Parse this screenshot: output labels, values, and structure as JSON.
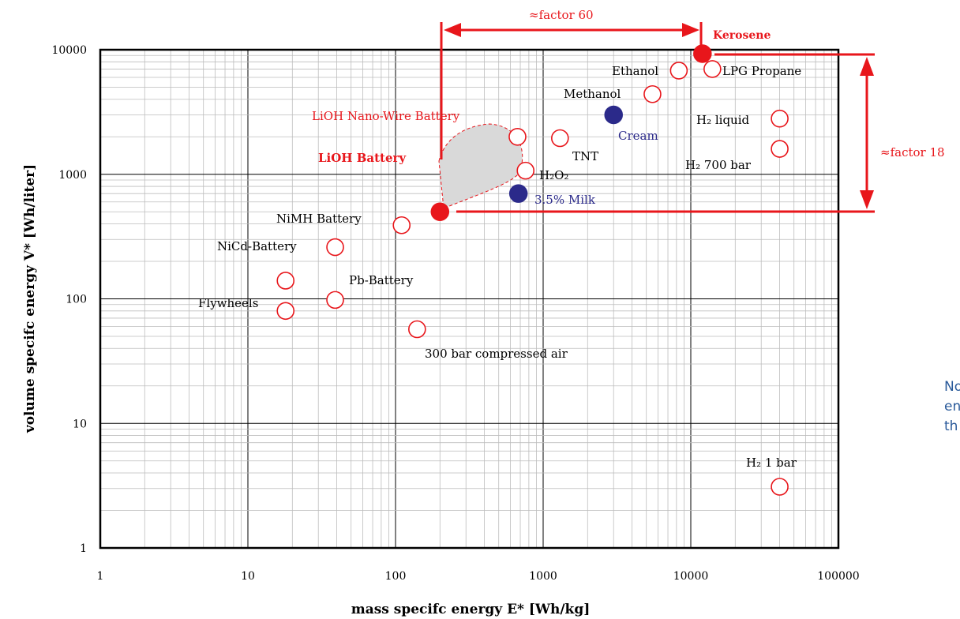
{
  "chart_data": {
    "type": "scatter",
    "xscale": "log",
    "yscale": "log",
    "xlim": [
      1,
      100000
    ],
    "ylim": [
      1,
      10000
    ],
    "grid": true,
    "xlabel": "mass specifc energy E* [Wh/kg]",
    "ylabel": "volume specifc energy V* [Wh/liter]",
    "xticks": [
      "1",
      "10",
      "100",
      "1000",
      "10000",
      "100000"
    ],
    "yticks": [
      "1",
      "10",
      "100",
      "1000",
      "10000"
    ],
    "points": [
      {
        "label": "Kerosene",
        "x": 12000,
        "y": 9300,
        "style": "filled-red"
      },
      {
        "label": "LiOH Battery",
        "x": 200,
        "y": 500,
        "style": "filled-red"
      },
      {
        "label": "Cream",
        "x": 3000,
        "y": 3000,
        "style": "filled-blue"
      },
      {
        "label": "3.5% Milk",
        "x": 680,
        "y": 700,
        "style": "filled-blue"
      },
      {
        "label": "Ethanol",
        "x": 8300,
        "y": 6800,
        "style": "open"
      },
      {
        "label": "LPG Propane",
        "x": 14000,
        "y": 7000,
        "style": "open"
      },
      {
        "label": "Methanol",
        "x": 5500,
        "y": 4400,
        "style": "open"
      },
      {
        "label": "H₂ liquid",
        "x": 40000,
        "y": 2800,
        "style": "open"
      },
      {
        "label": "H₂ 700 bar",
        "x": 40000,
        "y": 1600,
        "style": "open"
      },
      {
        "label": "LiOH Nano-Wire Battery",
        "x": 670,
        "y": 2000,
        "style": "open"
      },
      {
        "label": "TNT",
        "x": 1300,
        "y": 1950,
        "style": "open"
      },
      {
        "label": "H₂O₂",
        "x": 760,
        "y": 1070,
        "style": "open"
      },
      {
        "label": "NiMH Battery",
        "x": 110,
        "y": 390,
        "style": "open"
      },
      {
        "label": "NiCd-Battery",
        "x": 39,
        "y": 260,
        "style": "open"
      },
      {
        "label": "Pb-Battery",
        "x": 39,
        "y": 98,
        "style": "open"
      },
      {
        "label": "Flywheels",
        "x": 18,
        "y": 140,
        "style": "open"
      },
      {
        "label": "Flywheels",
        "x": 18,
        "y": 80,
        "style": "open"
      },
      {
        "label": "300 bar compressed air",
        "x": 140,
        "y": 57,
        "style": "open"
      },
      {
        "label": "H₂ 1 bar",
        "x": 40000,
        "y": 3.1,
        "style": "open"
      }
    ],
    "annotations": [
      {
        "text": "≈factor 60",
        "type": "horizontal-arrow",
        "from": "LiOH Battery",
        "to": "Kerosene"
      },
      {
        "text": "≈factor 18",
        "type": "vertical-arrow",
        "from": "LiOH Battery",
        "to": "Kerosene"
      }
    ]
  },
  "labels": {
    "kerosene": "Kerosene",
    "ethanol": "Ethanol",
    "lpg": "LPG Propane",
    "methanol": "Methanol",
    "cream": "Cream",
    "milk": "3.5% Milk",
    "h2_liquid": "H₂ liquid",
    "h2_700": "H₂ 700 bar",
    "nanowire": "LiOH Nano-Wire Battery",
    "lioh": "LiOH Battery",
    "tnt": "TNT",
    "h2o2": "H₂O₂",
    "nimh": "NiMH Battery",
    "nicd": "NiCd-Battery",
    "pb": "Pb-Battery",
    "flywheels": "Flywheels",
    "air": "300 bar compressed air",
    "h2_1bar": "H₂ 1 bar",
    "factor60": "≈factor 60",
    "factor18": "≈factor 18"
  },
  "side_text": {
    "line1": "No",
    "line2": "en",
    "line3": "th"
  },
  "colors": {
    "red": "#e8161b",
    "blue": "#2b2a8a",
    "side_text": "#2a5a9a",
    "fill_region": "#d9d9d9"
  }
}
